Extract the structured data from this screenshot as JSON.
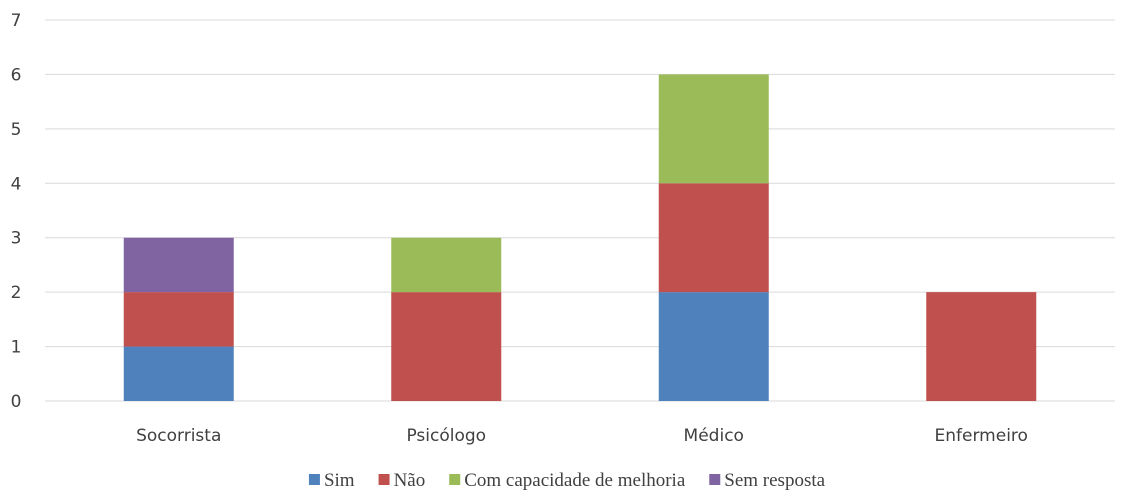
{
  "chart_data": {
    "type": "bar",
    "stacked": true,
    "categories": [
      "Socorrista",
      "Psicólogo",
      "Médico",
      "Enfermeiro"
    ],
    "series": [
      {
        "name": "Sim",
        "values": [
          1,
          0,
          2,
          0
        ],
        "color": "#4f81bd"
      },
      {
        "name": "Não",
        "values": [
          1,
          2,
          2,
          2
        ],
        "color": "#c0504d"
      },
      {
        "name": "Com capacidade de melhoria",
        "values": [
          0,
          1,
          2,
          0
        ],
        "color": "#9bbb59"
      },
      {
        "name": "Sem resposta",
        "values": [
          1,
          0,
          0,
          0
        ],
        "color": "#8064a2"
      }
    ],
    "ylim": [
      0,
      7
    ],
    "yticks": [
      "0",
      "1",
      "2",
      "3",
      "4",
      "5",
      "6",
      "7"
    ],
    "grid": true,
    "legend_position": "bottom"
  }
}
